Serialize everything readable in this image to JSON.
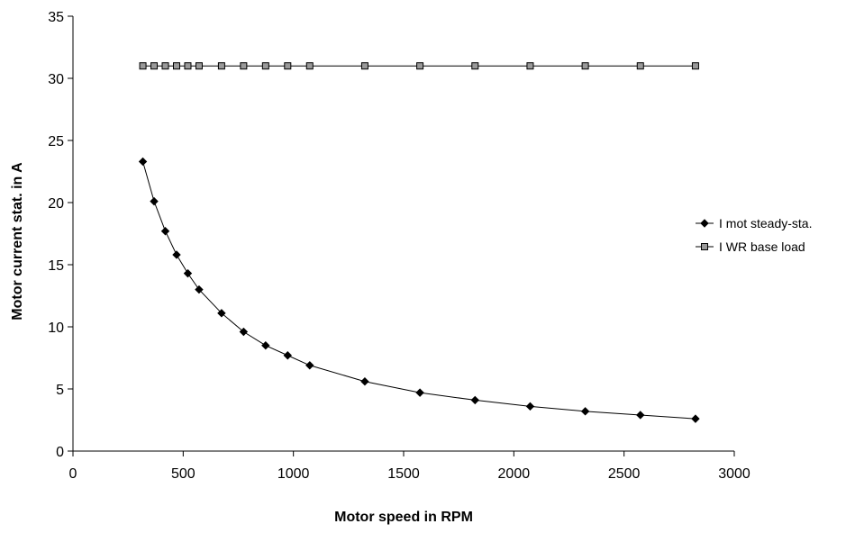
{
  "chart_data": {
    "type": "line",
    "title": "",
    "xlabel": "Motor speed in RPM",
    "ylabel": "Motor current stat. in A",
    "xlim": [
      0,
      3000
    ],
    "ylim": [
      0,
      35
    ],
    "xticks": [
      0,
      500,
      1000,
      1500,
      2000,
      2500,
      3000
    ],
    "yticks": [
      0,
      5,
      10,
      15,
      20,
      25,
      30,
      35
    ],
    "xtick_labels": [
      "0",
      "500",
      "1000",
      "1500",
      "2000",
      "2500",
      "3000"
    ],
    "ytick_labels": [
      "0",
      "5",
      "10",
      "15",
      "20",
      "25",
      "30",
      "35"
    ],
    "grid": false,
    "legend_position": "right",
    "series": [
      {
        "name": "I mot steady-sta.",
        "marker": "diamond",
        "color": "#000000",
        "x": [
          317,
          368,
          419,
          470,
          521,
          572,
          674,
          774,
          874,
          974,
          1074,
          1324,
          1574,
          1824,
          2074,
          2324,
          2574,
          2824
        ],
        "y": [
          23.3,
          20.1,
          17.7,
          15.8,
          14.3,
          13.0,
          11.1,
          9.6,
          8.5,
          7.7,
          6.9,
          5.6,
          4.7,
          4.1,
          3.6,
          3.2,
          2.9,
          2.6
        ]
      },
      {
        "name": "I WR base load",
        "marker": "square",
        "color": "#999999",
        "x": [
          317,
          368,
          419,
          470,
          521,
          572,
          674,
          774,
          874,
          974,
          1074,
          1324,
          1574,
          1824,
          2074,
          2324,
          2574,
          2824
        ],
        "y": [
          31,
          31,
          31,
          31,
          31,
          31,
          31,
          31,
          31,
          31,
          31,
          31,
          31,
          31,
          31,
          31,
          31,
          31
        ]
      }
    ]
  }
}
